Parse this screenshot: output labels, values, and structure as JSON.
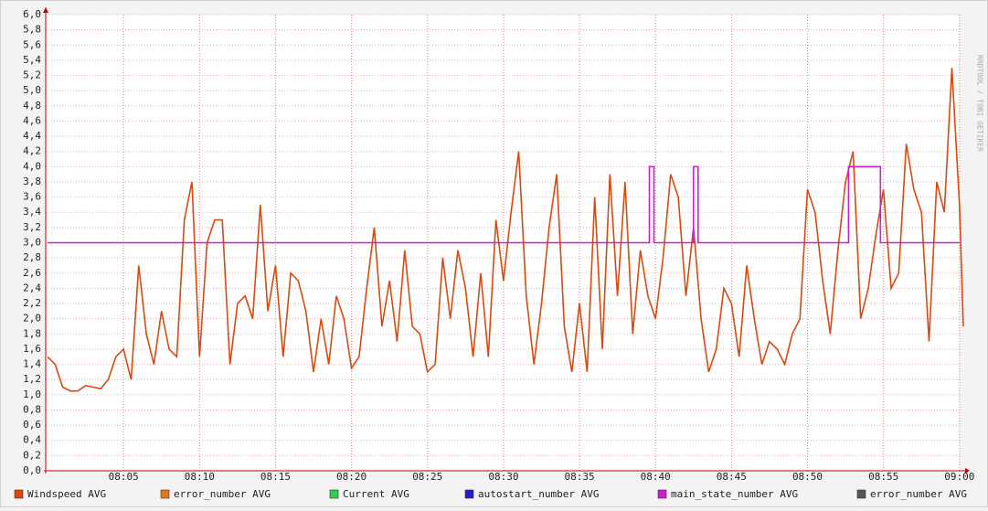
{
  "chart_data": {
    "type": "line",
    "watermark": "RRDTOOL / TOBI OETIKER",
    "x": [
      480,
      480.5,
      481,
      481.5,
      482,
      482.5,
      483,
      483.5,
      484,
      484.5,
      485,
      485.5,
      486,
      486.5,
      487,
      487.5,
      488,
      488.5,
      489,
      489.5,
      490,
      490.5,
      491,
      491.5,
      492,
      492.5,
      493,
      493.5,
      494,
      494.5,
      495,
      495.5,
      496,
      496.5,
      497,
      497.5,
      498,
      498.5,
      499,
      499.5,
      500,
      500.5,
      501,
      501.5,
      502,
      502.5,
      503,
      503.5,
      504,
      504.5,
      505,
      505.5,
      506,
      506.5,
      507,
      507.5,
      508,
      508.5,
      509,
      509.5,
      510,
      510.5,
      511,
      511.5,
      512,
      512.5,
      513,
      513.5,
      514,
      514.5,
      515,
      515.5,
      516,
      516.5,
      517,
      517.5,
      518,
      518.5,
      519,
      519.5,
      520,
      520.5,
      521,
      521.5,
      522,
      522.5,
      523,
      523.5,
      524,
      524.5,
      525,
      525.5,
      526,
      526.5,
      527,
      527.5,
      528,
      528.5,
      529,
      529.5,
      530,
      530.5,
      531,
      531.5,
      532,
      532.5,
      533,
      533.5,
      534,
      534.5,
      535,
      535.5,
      536,
      536.5,
      537,
      537.5,
      538,
      538.5,
      539,
      539.5,
      540,
      540.25
    ],
    "xlim": [
      480,
      540.2
    ],
    "xticks": [
      {
        "value": 485,
        "label": "08:05"
      },
      {
        "value": 490,
        "label": "08:10"
      },
      {
        "value": 495,
        "label": "08:15"
      },
      {
        "value": 500,
        "label": "08:20"
      },
      {
        "value": 505,
        "label": "08:25"
      },
      {
        "value": 510,
        "label": "08:30"
      },
      {
        "value": 515,
        "label": "08:35"
      },
      {
        "value": 520,
        "label": "08:40"
      },
      {
        "value": 525,
        "label": "08:45"
      },
      {
        "value": 530,
        "label": "08:50"
      },
      {
        "value": 535,
        "label": "08:55"
      },
      {
        "value": 540,
        "label": "09:00"
      }
    ],
    "ylim": [
      0,
      6
    ],
    "yticks": [
      {
        "value": 0,
        "label": "0,0"
      },
      {
        "value": 0.2,
        "label": "0,2"
      },
      {
        "value": 0.4,
        "label": "0,4"
      },
      {
        "value": 0.6,
        "label": "0,6"
      },
      {
        "value": 0.8,
        "label": "0,8"
      },
      {
        "value": 1,
        "label": "1,0"
      },
      {
        "value": 1.2,
        "label": "1,2"
      },
      {
        "value": 1.4,
        "label": "1,4"
      },
      {
        "value": 1.6,
        "label": "1,6"
      },
      {
        "value": 1.8,
        "label": "1,8"
      },
      {
        "value": 2,
        "label": "2,0"
      },
      {
        "value": 2.2,
        "label": "2,2"
      },
      {
        "value": 2.4,
        "label": "2,4"
      },
      {
        "value": 2.6,
        "label": "2,6"
      },
      {
        "value": 2.8,
        "label": "2,8"
      },
      {
        "value": 3,
        "label": "3,0"
      },
      {
        "value": 3.2,
        "label": "3,2"
      },
      {
        "value": 3.4,
        "label": "3,4"
      },
      {
        "value": 3.6,
        "label": "3,6"
      },
      {
        "value": 3.8,
        "label": "3,8"
      },
      {
        "value": 4,
        "label": "4,0"
      },
      {
        "value": 4.2,
        "label": "4,2"
      },
      {
        "value": 4.4,
        "label": "4,4"
      },
      {
        "value": 4.6,
        "label": "4,6"
      },
      {
        "value": 4.8,
        "label": "4,8"
      },
      {
        "value": 5,
        "label": "5,0"
      },
      {
        "value": 5.2,
        "label": "5,2"
      },
      {
        "value": 5.4,
        "label": "5,4"
      },
      {
        "value": 5.6,
        "label": "5,6"
      },
      {
        "value": 5.8,
        "label": "5,8"
      },
      {
        "value": 6,
        "label": "6,0"
      }
    ],
    "grid": true,
    "series": [
      {
        "name": "Windspeed AVG",
        "color": "#d84a10",
        "values": [
          1.5,
          1.4,
          1.1,
          1.05,
          1.05,
          1.12,
          1.1,
          1.08,
          1.2,
          1.5,
          1.6,
          1.2,
          2.7,
          1.8,
          1.4,
          2.1,
          1.6,
          1.5,
          3.3,
          3.8,
          1.5,
          3.0,
          3.3,
          3.3,
          1.4,
          2.2,
          2.3,
          2.0,
          3.5,
          2.1,
          2.7,
          1.5,
          2.6,
          2.5,
          2.1,
          1.3,
          2.0,
          1.4,
          2.3,
          2.0,
          1.35,
          1.5,
          2.4,
          3.2,
          1.9,
          2.5,
          1.7,
          2.9,
          1.9,
          1.8,
          1.3,
          1.4,
          2.8,
          2.0,
          2.9,
          2.4,
          1.5,
          2.6,
          1.5,
          3.3,
          2.5,
          3.4,
          4.2,
          2.3,
          1.4,
          2.2,
          3.2,
          3.9,
          1.9,
          1.3,
          2.2,
          1.3,
          3.6,
          1.6,
          3.9,
          2.3,
          3.8,
          1.8,
          2.9,
          2.3,
          2.0,
          2.8,
          3.9,
          3.6,
          2.3,
          3.2,
          2.0,
          1.3,
          1.6,
          2.4,
          2.2,
          1.5,
          2.7,
          2.0,
          1.4,
          1.7,
          1.6,
          1.4,
          1.8,
          2.0,
          3.7,
          3.4,
          2.5,
          1.8,
          2.9,
          3.8,
          4.2,
          2.0,
          2.4,
          3.1,
          3.7,
          2.4,
          2.6,
          4.3,
          3.7,
          3.4,
          1.7,
          3.8,
          3.4,
          5.3,
          3.5,
          1.9
        ]
      },
      {
        "name": "error_number AVG",
        "color": "#e07a20"
      },
      {
        "name": "Current AVG",
        "color": "#30d050"
      },
      {
        "name": "autostart_number AVG",
        "color": "#2020d0"
      },
      {
        "name": "main_state_number AVG",
        "color": "#cc20cc",
        "x": [
          480,
          519.6,
          519.6,
          519.9,
          519.9,
          522.5,
          522.5,
          522.8,
          522.8,
          532.7,
          532.7,
          534.8,
          534.8,
          540
        ],
        "values": [
          3,
          3,
          4,
          4,
          3,
          3,
          4,
          4,
          3,
          3,
          4,
          4,
          3,
          3
        ]
      },
      {
        "name": "error_number AVG",
        "color": "#555555"
      }
    ]
  }
}
